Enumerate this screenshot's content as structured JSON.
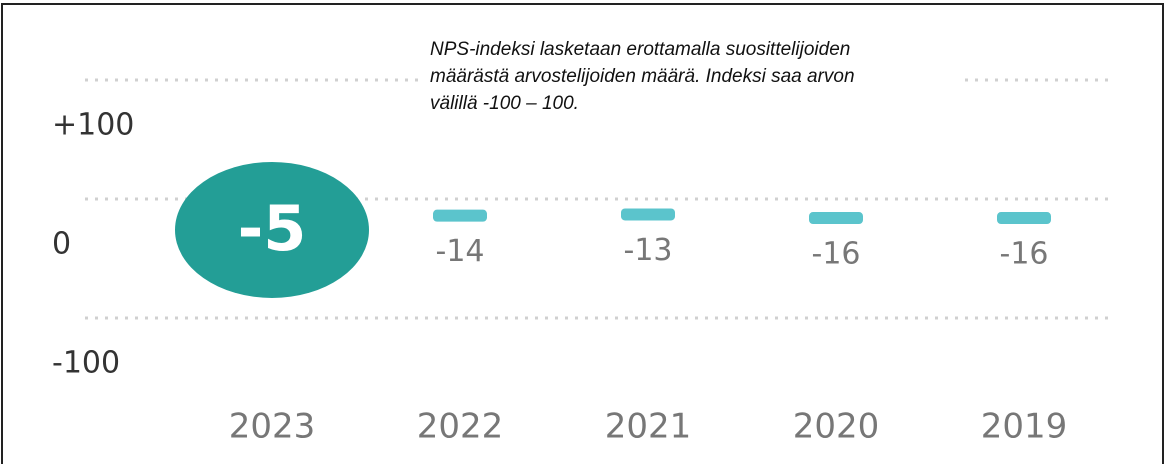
{
  "chart_data": {
    "type": "nps",
    "annotation": [
      "NPS-indeksi lasketaan erottamalla suosittelijoiden",
      "määrästä arvostelijoiden määrä. Indeksi saa arvon",
      "välillä -100 – 100."
    ],
    "categories": [
      "2023",
      "2022",
      "2021",
      "2020",
      "2019"
    ],
    "values": [
      -5,
      -14,
      -13,
      -16,
      -16
    ],
    "highlight_color": "#239e96",
    "color": "#5bc4cc",
    "ylim": [
      -100,
      100
    ],
    "yticks": [
      {
        "value": 100,
        "label": "+100"
      },
      0,
      -100
    ],
    "grid": true
  }
}
